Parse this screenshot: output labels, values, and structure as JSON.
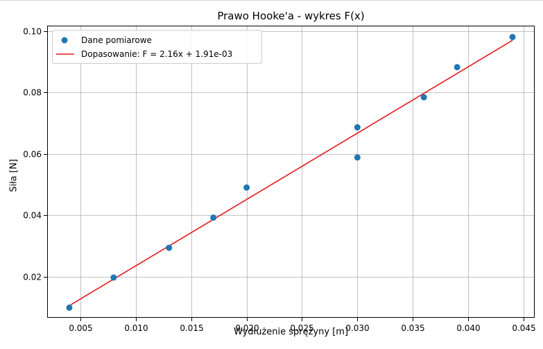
{
  "chart_data": {
    "type": "scatter",
    "title": "Prawo Hooke'a - wykres F(x)",
    "xlabel": "Wydłużenie sprężyny [m]",
    "ylabel": "Siła [N]",
    "xlim": [
      0.002,
      0.046
    ],
    "ylim": [
      0.0066,
      0.1017
    ],
    "x_ticks": [
      0.005,
      0.01,
      0.015,
      0.02,
      0.025,
      0.03,
      0.035,
      0.04,
      0.045
    ],
    "x_tick_labels": [
      "0.005",
      "0.010",
      "0.015",
      "0.020",
      "0.025",
      "0.030",
      "0.035",
      "0.040",
      "0.045"
    ],
    "y_ticks": [
      0.02,
      0.04,
      0.06,
      0.08,
      0.1
    ],
    "y_tick_labels": [
      "0.02",
      "0.04",
      "0.06",
      "0.08",
      "0.10"
    ],
    "grid": true,
    "legend_position": "top-left",
    "series": [
      {
        "name": "Dane pomiarowe",
        "kind": "scatter",
        "color": "#1f77b4",
        "x": [
          0.004,
          0.008,
          0.013,
          0.017,
          0.02,
          0.03,
          0.03,
          0.036,
          0.039,
          0.044
        ],
        "y": [
          0.0099,
          0.0197,
          0.0294,
          0.0392,
          0.049,
          0.0588,
          0.0686,
          0.0784,
          0.0882,
          0.098
        ]
      },
      {
        "name": "Dopasowanie: F = 2.16x + 1.91e-03",
        "kind": "line",
        "color": "#e31a1c",
        "slope": 2.16,
        "intercept": 0.00191,
        "x": [
          0.004,
          0.044
        ]
      }
    ]
  }
}
